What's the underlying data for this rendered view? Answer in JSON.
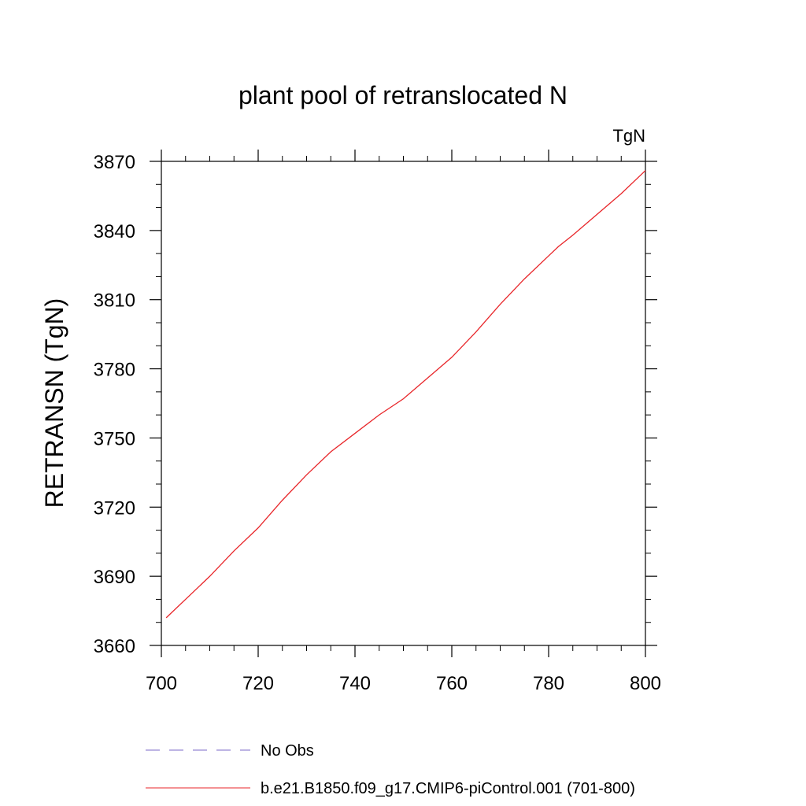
{
  "chart_data": {
    "type": "line",
    "title": "plant pool of retranslocated N",
    "units_label": "TgN",
    "ylabel": "RETRANSN  (TgN)",
    "xlabel": "",
    "xlim": [
      700,
      800
    ],
    "ylim": [
      3660,
      3870
    ],
    "x_ticks": [
      700,
      720,
      740,
      760,
      780,
      800
    ],
    "y_ticks": [
      3660,
      3690,
      3720,
      3750,
      3780,
      3810,
      3840,
      3870
    ],
    "x_minor_step": 5,
    "y_minor_step": 10,
    "grid": false,
    "legend_position": "bottom",
    "series": [
      {
        "name": "No Obs",
        "color": "#7b68c8",
        "dash": "dashed",
        "x": [],
        "y": []
      },
      {
        "name": "b.e21.B1850.f09_g17.CMIP6-piControl.001 (701-800)",
        "color": "#e8262a",
        "dash": "solid",
        "x": [
          701,
          705,
          710,
          715,
          720,
          725,
          730,
          735,
          740,
          745,
          750,
          755,
          760,
          765,
          770,
          775,
          780,
          782,
          785,
          790,
          795,
          800
        ],
        "y": [
          3672,
          3680,
          3690,
          3701,
          3711,
          3723,
          3734,
          3744,
          3752,
          3760,
          3767,
          3776,
          3785,
          3796,
          3808,
          3819,
          3829,
          3833,
          3838,
          3847,
          3856,
          3866
        ]
      }
    ]
  }
}
